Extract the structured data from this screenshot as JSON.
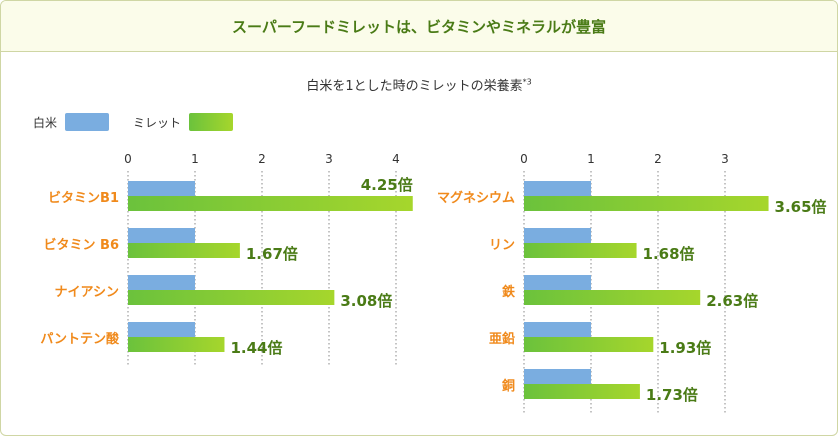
{
  "header": {
    "title": "スーパーフードミレットは、ビタミンやミネラルが豊富"
  },
  "subtitle": {
    "text": "白米を1とした時のミレットの栄養素",
    "note": "*3"
  },
  "legend": {
    "items": [
      {
        "label": "白米",
        "color": "#7aade0"
      },
      {
        "label": "ミレット",
        "color": "#8fd032"
      }
    ]
  },
  "colors": {
    "category_label": "#f08a1c",
    "value_label": "#4a7b16",
    "rice_bar": "#7aade0",
    "millet_bar_start": "#6bc23c",
    "millet_bar_end": "#a6d62c",
    "grid": "#888888"
  },
  "chart_data": [
    {
      "type": "bar",
      "orientation": "horizontal",
      "categories": [
        "ビタミンB1",
        "ビタミン B6",
        "ナイアシン",
        "パントテン酸"
      ],
      "ticks": [
        "0",
        "1",
        "2",
        "3",
        "4"
      ],
      "xlim": [
        0,
        4.25
      ],
      "series": [
        {
          "name": "白米",
          "values": [
            1,
            1,
            1,
            1
          ]
        },
        {
          "name": "ミレット",
          "values": [
            4.25,
            1.67,
            3.08,
            1.44
          ],
          "labels": [
            "4.25倍",
            "1.67倍",
            "3.08倍",
            "1.44倍"
          ]
        }
      ]
    },
    {
      "type": "bar",
      "orientation": "horizontal",
      "categories": [
        "マグネシウム",
        "リン",
        "鉄",
        "亜鉛",
        "銅"
      ],
      "ticks": [
        "0",
        "1",
        "2",
        "3"
      ],
      "xlim": [
        0,
        4
      ],
      "series": [
        {
          "name": "白米",
          "values": [
            1,
            1,
            1,
            1,
            1
          ]
        },
        {
          "name": "ミレット",
          "values": [
            3.65,
            1.68,
            2.63,
            1.93,
            1.73
          ],
          "labels": [
            "3.65倍",
            "1.68倍",
            "2.63倍",
            "1.93倍",
            "1.73倍"
          ]
        }
      ]
    }
  ]
}
